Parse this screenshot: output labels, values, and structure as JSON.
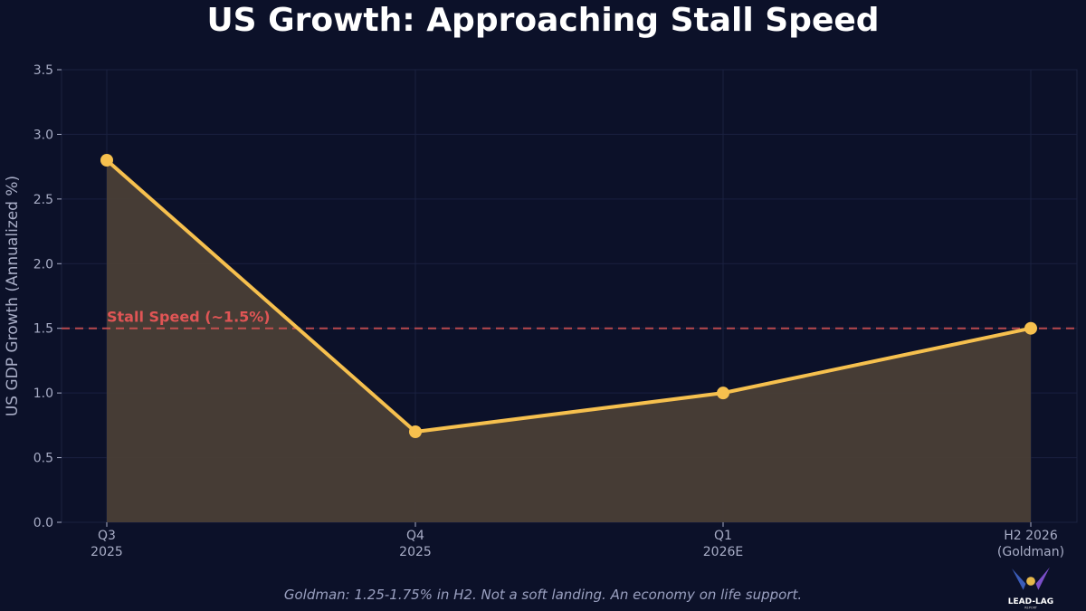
{
  "title": "US Growth: Approaching Stall Speed",
  "caption": "Goldman: 1.25-1.75% in H2. Not a soft landing. An economy on life support.",
  "logo_text": "LEAD-LAG REPORT",
  "chart_data": {
    "type": "area",
    "title": "US Growth: Approaching Stall Speed",
    "xlabel": "",
    "ylabel": "US GDP Growth (Annualized %)",
    "categories": [
      [
        "Q3",
        "2025"
      ],
      [
        "Q4",
        "2025"
      ],
      [
        "Q1",
        "2026E"
      ],
      [
        "H2 2026",
        "(Goldman)"
      ]
    ],
    "values": [
      2.8,
      0.7,
      1.0,
      1.5
    ],
    "ylim": [
      0,
      3.5
    ],
    "yticks": [
      "0.0",
      "0.5",
      "1.0",
      "1.5",
      "2.0",
      "2.5",
      "3.0",
      "3.5"
    ],
    "grid": true,
    "reference_line": {
      "value": 1.5,
      "label": "Stall Speed (~1.5%)",
      "color": "#e05555",
      "style": "dashed"
    },
    "colors": {
      "line": "#f6c04e",
      "fill": "#4a3f36",
      "background": "#0c1129"
    }
  }
}
